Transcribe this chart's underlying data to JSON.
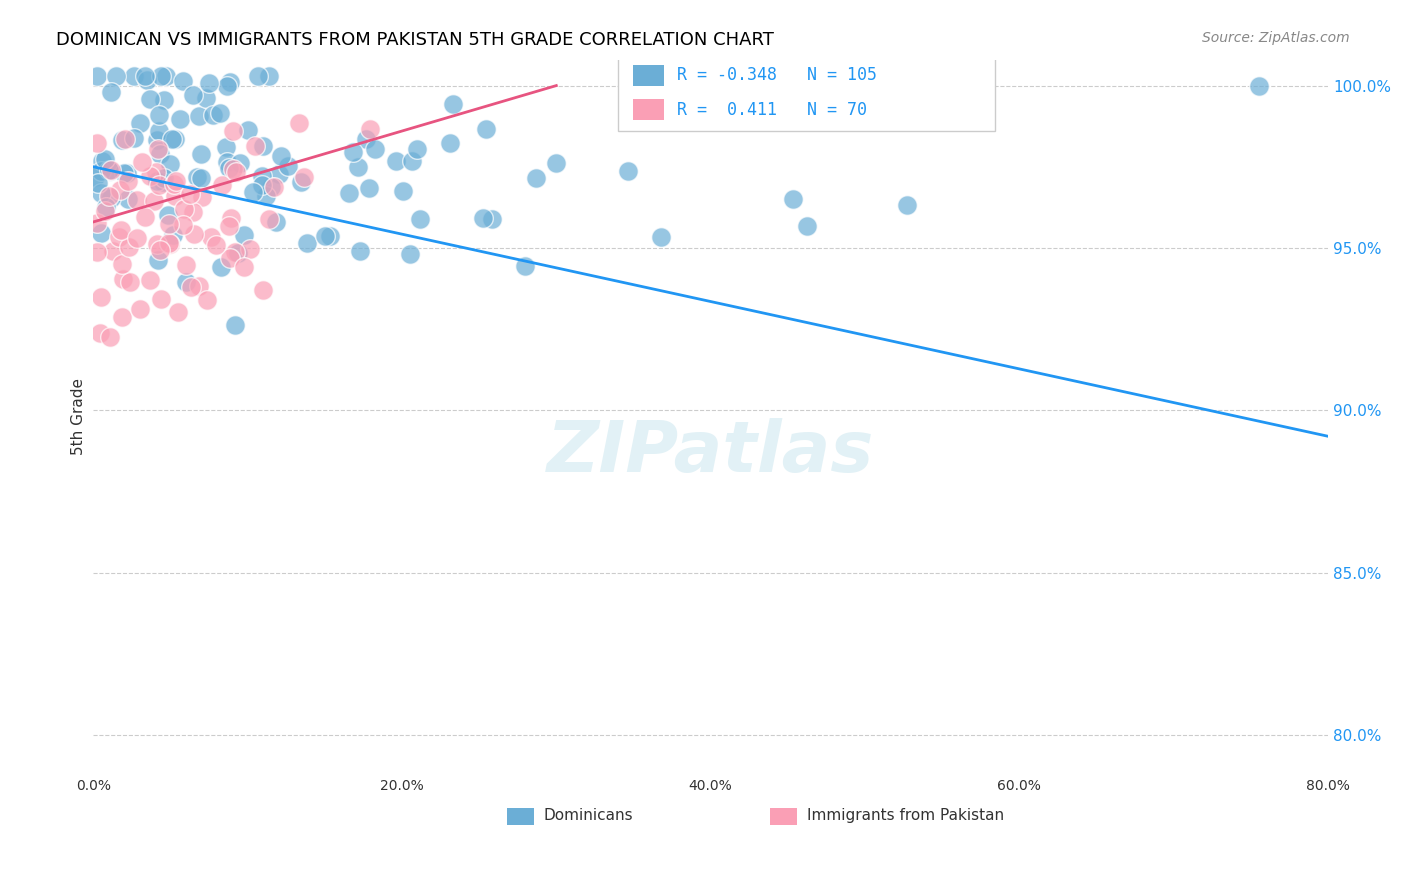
{
  "title": "DOMINICAN VS IMMIGRANTS FROM PAKISTAN 5TH GRADE CORRELATION CHART",
  "source": "Source: ZipAtlas.com",
  "ylabel": "5th Grade",
  "ytick_labels": [
    "100.0%",
    "95.0%",
    "90.0%",
    "85.0%",
    "80.0%"
  ],
  "ytick_values": [
    1.0,
    0.95,
    0.9,
    0.85,
    0.8
  ],
  "xlim": [
    0.0,
    0.8
  ],
  "ylim": [
    0.788,
    1.008
  ],
  "legend_blue_R": "-0.348",
  "legend_blue_N": "105",
  "legend_pink_R": "0.411",
  "legend_pink_N": "70",
  "legend_label_blue": "Dominicans",
  "legend_label_pink": "Immigrants from Pakistan",
  "blue_color": "#6baed6",
  "pink_color": "#fa9fb5",
  "blue_line_color": "#2196F3",
  "pink_line_color": "#e75480",
  "watermark": "ZIPatlas",
  "blue_trend_x": [
    0.0,
    0.8
  ],
  "blue_trend_y": [
    0.975,
    0.892
  ],
  "pink_trend_x": [
    0.0,
    0.3
  ],
  "pink_trend_y": [
    0.958,
    1.0
  ]
}
